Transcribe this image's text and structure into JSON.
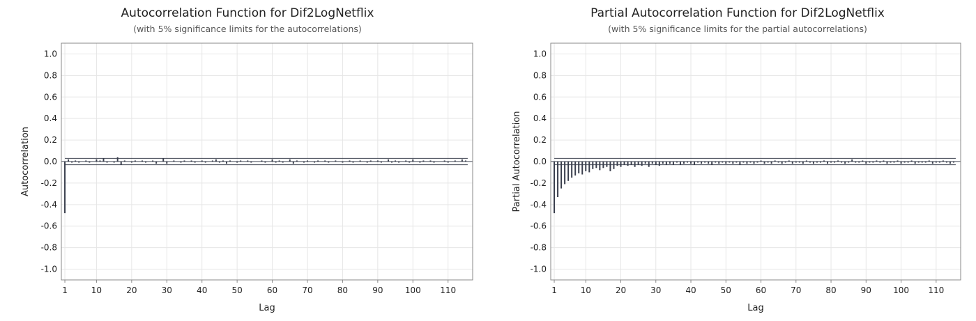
{
  "chart_data": [
    {
      "type": "bar",
      "title": "Autocorrelation Function for Dif2LogNetflix",
      "subtitle": "(with 5% significance limits for the autocorrelations)",
      "xlabel": "Lag",
      "ylabel": "Autocorrelation",
      "ylim": [
        -1.1,
        1.1
      ],
      "xlim": [
        0,
        117
      ],
      "x_ticks": [
        1,
        10,
        20,
        30,
        40,
        50,
        60,
        70,
        80,
        90,
        100,
        110
      ],
      "y_ticks": [
        1.0,
        0.8,
        0.6,
        0.4,
        0.2,
        0.0,
        -0.2,
        -0.4,
        -0.6,
        -0.8,
        -1.0
      ],
      "y_tick_labels": [
        "1.0",
        "0.8",
        "0.6",
        "0.4",
        "0.2",
        "0.0",
        "-0.2",
        "-0.4",
        "-0.6",
        "-0.8",
        "-1.0"
      ],
      "significance_limit": 0.03,
      "grid": true,
      "lags": [
        1,
        2,
        3,
        4,
        5,
        6,
        7,
        8,
        9,
        10,
        11,
        12,
        13,
        14,
        15,
        16,
        17,
        18,
        19,
        20,
        21,
        22,
        23,
        24,
        25,
        26,
        27,
        28,
        29,
        30,
        31,
        32,
        33,
        34,
        35,
        36,
        37,
        38,
        39,
        40,
        41,
        42,
        43,
        44,
        45,
        46,
        47,
        48,
        49,
        50,
        51,
        52,
        53,
        54,
        55,
        56,
        57,
        58,
        59,
        60,
        61,
        62,
        63,
        64,
        65,
        66,
        67,
        68,
        69,
        70,
        71,
        72,
        73,
        74,
        75,
        76,
        77,
        78,
        79,
        80,
        81,
        82,
        83,
        84,
        85,
        86,
        87,
        88,
        89,
        90,
        91,
        92,
        93,
        94,
        95,
        96,
        97,
        98,
        99,
        100,
        101,
        102,
        103,
        104,
        105,
        106,
        107,
        108,
        109,
        110,
        111,
        112,
        113,
        114,
        115
      ],
      "values": [
        -0.48,
        0.02,
        -0.01,
        0.01,
        -0.01,
        0.0,
        0.01,
        -0.01,
        0.0,
        0.02,
        0.01,
        0.03,
        -0.01,
        0.0,
        -0.01,
        0.04,
        -0.03,
        0.01,
        0.0,
        -0.01,
        0.01,
        0.0,
        0.01,
        -0.01,
        0.0,
        0.01,
        -0.02,
        0.0,
        0.03,
        -0.02,
        0.0,
        0.01,
        0.0,
        -0.01,
        0.01,
        0.0,
        0.01,
        -0.01,
        0.0,
        0.01,
        -0.01,
        0.0,
        0.01,
        0.02,
        -0.01,
        0.01,
        -0.02,
        0.01,
        0.0,
        -0.01,
        0.01,
        0.0,
        0.01,
        -0.01,
        0.0,
        0.0,
        0.01,
        -0.01,
        0.0,
        0.02,
        -0.01,
        0.01,
        -0.01,
        0.0,
        0.02,
        -0.02,
        0.01,
        0.0,
        -0.01,
        0.01,
        0.0,
        -0.01,
        0.01,
        0.0,
        0.01,
        -0.01,
        0.0,
        0.01,
        0.0,
        -0.01,
        0.0,
        0.01,
        -0.01,
        0.0,
        0.01,
        0.0,
        -0.01,
        0.01,
        0.0,
        0.01,
        -0.01,
        0.0,
        0.02,
        -0.01,
        0.01,
        -0.01,
        0.0,
        0.01,
        -0.01,
        0.02,
        0.0,
        -0.01,
        0.01,
        0.0,
        0.01,
        -0.01,
        0.0,
        0.0,
        0.01,
        -0.01,
        0.0,
        0.01,
        0.0,
        0.02,
        0.01
      ]
    },
    {
      "type": "bar",
      "title": "Partial Autocorrelation Function for Dif2LogNetflix",
      "subtitle": "(with 5% significance limits for the partial autocorrelations)",
      "xlabel": "Lag",
      "ylabel": "Partial Autocorrelation",
      "ylim": [
        -1.1,
        1.1
      ],
      "xlim": [
        0,
        117
      ],
      "x_ticks": [
        1,
        10,
        20,
        30,
        40,
        50,
        60,
        70,
        80,
        90,
        100,
        110
      ],
      "y_ticks": [
        1.0,
        0.8,
        0.6,
        0.4,
        0.2,
        0.0,
        -0.2,
        -0.4,
        -0.6,
        -0.8,
        -1.0
      ],
      "y_tick_labels": [
        "1.0",
        "0.8",
        "0.6",
        "0.4",
        "0.2",
        "0.0",
        "-0.2",
        "-0.4",
        "-0.6",
        "-0.8",
        "-1.0"
      ],
      "significance_limit": 0.03,
      "grid": true,
      "lags": [
        1,
        2,
        3,
        4,
        5,
        6,
        7,
        8,
        9,
        10,
        11,
        12,
        13,
        14,
        15,
        16,
        17,
        18,
        19,
        20,
        21,
        22,
        23,
        24,
        25,
        26,
        27,
        28,
        29,
        30,
        31,
        32,
        33,
        34,
        35,
        36,
        37,
        38,
        39,
        40,
        41,
        42,
        43,
        44,
        45,
        46,
        47,
        48,
        49,
        50,
        51,
        52,
        53,
        54,
        55,
        56,
        57,
        58,
        59,
        60,
        61,
        62,
        63,
        64,
        65,
        66,
        67,
        68,
        69,
        70,
        71,
        72,
        73,
        74,
        75,
        76,
        77,
        78,
        79,
        80,
        81,
        82,
        83,
        84,
        85,
        86,
        87,
        88,
        89,
        90,
        91,
        92,
        93,
        94,
        95,
        96,
        97,
        98,
        99,
        100,
        101,
        102,
        103,
        104,
        105,
        106,
        107,
        108,
        109,
        110,
        111,
        112,
        113,
        114,
        115
      ],
      "values": [
        -0.48,
        -0.33,
        -0.25,
        -0.21,
        -0.18,
        -0.15,
        -0.13,
        -0.11,
        -0.12,
        -0.09,
        -0.1,
        -0.07,
        -0.06,
        -0.08,
        -0.06,
        -0.05,
        -0.09,
        -0.07,
        -0.04,
        -0.05,
        -0.03,
        -0.04,
        -0.03,
        -0.05,
        -0.03,
        -0.04,
        -0.02,
        -0.05,
        -0.02,
        -0.03,
        -0.04,
        -0.02,
        -0.03,
        -0.02,
        -0.03,
        -0.01,
        -0.03,
        -0.02,
        -0.01,
        -0.02,
        -0.03,
        -0.01,
        -0.02,
        -0.01,
        -0.02,
        -0.03,
        -0.01,
        -0.02,
        -0.01,
        -0.02,
        -0.01,
        -0.02,
        -0.01,
        -0.03,
        -0.01,
        -0.02,
        -0.01,
        -0.02,
        -0.01,
        0.01,
        -0.02,
        -0.01,
        -0.02,
        0.01,
        -0.01,
        -0.02,
        -0.01,
        0.01,
        -0.02,
        -0.01,
        -0.01,
        -0.02,
        0.01,
        -0.01,
        -0.02,
        -0.01,
        -0.01,
        0.01,
        -0.02,
        -0.01,
        -0.01,
        0.01,
        -0.01,
        -0.02,
        -0.01,
        0.02,
        -0.01,
        -0.01,
        0.01,
        -0.02,
        -0.01,
        -0.01,
        0.01,
        -0.01,
        0.01,
        -0.02,
        -0.01,
        -0.01,
        0.01,
        -0.02,
        -0.01,
        -0.01,
        0.01,
        -0.02,
        -0.01,
        -0.01,
        -0.01,
        0.01,
        -0.02,
        -0.01,
        -0.01,
        0.01,
        -0.01,
        -0.02,
        -0.01
      ]
    }
  ]
}
